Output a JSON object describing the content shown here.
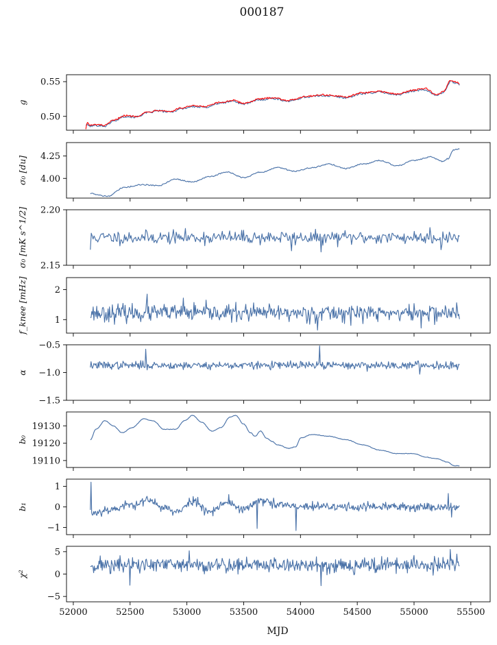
{
  "figure": {
    "title": "000187",
    "xlabel": "MJD"
  },
  "colors": {
    "series": "#4a72a8",
    "fit": "#ff0000",
    "axis": "#000000"
  },
  "chart_data": [
    {
      "type": "line",
      "ylabel": "g",
      "xlim": [
        51940,
        55670
      ],
      "ylim": [
        0.48,
        0.56
      ],
      "yticks": [
        0.5,
        0.55
      ],
      "ytick_labels": [
        "0.50",
        "0.55"
      ],
      "series": [
        {
          "kind": "walk",
          "color": "#4a72a8",
          "x_range": [
            52110,
            55400
          ],
          "wobble": 0.0015,
          "anchors": [
            [
              52110,
              0.488
            ],
            [
              52150,
              0.486
            ],
            [
              52200,
              0.487
            ],
            [
              52280,
              0.486
            ],
            [
              52350,
              0.493
            ],
            [
              52450,
              0.5
            ],
            [
              52550,
              0.499
            ],
            [
              52650,
              0.505
            ],
            [
              52750,
              0.508
            ],
            [
              52850,
              0.506
            ],
            [
              52950,
              0.511
            ],
            [
              53050,
              0.514
            ],
            [
              53150,
              0.513
            ],
            [
              53300,
              0.519
            ],
            [
              53400,
              0.522
            ],
            [
              53500,
              0.518
            ],
            [
              53650,
              0.524
            ],
            [
              53750,
              0.526
            ],
            [
              53900,
              0.522
            ],
            [
              54050,
              0.528
            ],
            [
              54200,
              0.53
            ],
            [
              54400,
              0.527
            ],
            [
              54550,
              0.533
            ],
            [
              54700,
              0.535
            ],
            [
              54850,
              0.531
            ],
            [
              55000,
              0.537
            ],
            [
              55100,
              0.538
            ],
            [
              55200,
              0.53
            ],
            [
              55260,
              0.535
            ],
            [
              55320,
              0.55
            ],
            [
              55380,
              0.548
            ],
            [
              55400,
              0.546
            ]
          ]
        },
        {
          "kind": "walk",
          "color": "#ff0000",
          "x_range": [
            52110,
            55400
          ],
          "wobble": 0.0012,
          "anchors": [
            [
              52110,
              0.482
            ],
            [
              52120,
              0.491
            ],
            [
              52150,
              0.487
            ],
            [
              52200,
              0.488
            ],
            [
              52280,
              0.487
            ],
            [
              52350,
              0.494
            ],
            [
              52450,
              0.501
            ],
            [
              52550,
              0.5
            ],
            [
              52650,
              0.506
            ],
            [
              52750,
              0.509
            ],
            [
              52850,
              0.507
            ],
            [
              52950,
              0.512
            ],
            [
              53050,
              0.515
            ],
            [
              53150,
              0.514
            ],
            [
              53300,
              0.52
            ],
            [
              53400,
              0.523
            ],
            [
              53500,
              0.519
            ],
            [
              53650,
              0.525
            ],
            [
              53750,
              0.527
            ],
            [
              53900,
              0.523
            ],
            [
              54050,
              0.529
            ],
            [
              54200,
              0.531
            ],
            [
              54400,
              0.528
            ],
            [
              54550,
              0.534
            ],
            [
              54700,
              0.536
            ],
            [
              54850,
              0.532
            ],
            [
              55000,
              0.538
            ],
            [
              55100,
              0.54
            ],
            [
              55200,
              0.531
            ],
            [
              55260,
              0.536
            ],
            [
              55320,
              0.552
            ],
            [
              55380,
              0.549
            ],
            [
              55400,
              0.547
            ]
          ]
        }
      ]
    },
    {
      "type": "line",
      "ylabel": "σ₀ [du]",
      "xlim": [
        51940,
        55670
      ],
      "ylim": [
        3.78,
        4.4
      ],
      "yticks": [
        4.0,
        4.25
      ],
      "ytick_labels": [
        "4.00",
        "4.25"
      ],
      "series": [
        {
          "kind": "walk",
          "color": "#4a72a8",
          "x_range": [
            52150,
            55400
          ],
          "wobble": 0.006,
          "anchors": [
            [
              52150,
              3.83
            ],
            [
              52300,
              3.8
            ],
            [
              52450,
              3.9
            ],
            [
              52600,
              3.93
            ],
            [
              52750,
              3.92
            ],
            [
              52900,
              3.99
            ],
            [
              53050,
              3.96
            ],
            [
              53200,
              4.02
            ],
            [
              53350,
              4.07
            ],
            [
              53500,
              4.01
            ],
            [
              53650,
              4.07
            ],
            [
              53800,
              4.12
            ],
            [
              53950,
              4.08
            ],
            [
              54100,
              4.12
            ],
            [
              54250,
              4.16
            ],
            [
              54400,
              4.11
            ],
            [
              54550,
              4.16
            ],
            [
              54700,
              4.2
            ],
            [
              54850,
              4.14
            ],
            [
              55000,
              4.2
            ],
            [
              55150,
              4.24
            ],
            [
              55250,
              4.19
            ],
            [
              55300,
              4.22
            ],
            [
              55350,
              4.32
            ],
            [
              55400,
              4.33
            ]
          ]
        }
      ]
    },
    {
      "type": "line",
      "ylabel": "σ₀ [mK s^1/2]",
      "xlim": [
        51940,
        55670
      ],
      "ylim": [
        2.15,
        2.2
      ],
      "yticks": [
        2.15,
        2.2
      ],
      "ytick_labels": [
        "2.15",
        "2.20"
      ],
      "series": [
        {
          "kind": "noise",
          "color": "#4a72a8",
          "x_range": [
            52150,
            55400
          ],
          "n": 400,
          "mean": 2.175,
          "sd": 0.003,
          "seed": 11,
          "spikes": [
            [
              52150,
              2.164
            ],
            [
              53920,
              2.163
            ],
            [
              54180,
              2.162
            ],
            [
              55240,
              2.164
            ],
            [
              55140,
              2.184
            ]
          ]
        }
      ]
    },
    {
      "type": "line",
      "ylabel": "f_knee [mHz]",
      "xlim": [
        51940,
        55670
      ],
      "ylim": [
        0.55,
        2.4
      ],
      "yticks": [
        1,
        2
      ],
      "ytick_labels": [
        "1",
        "2"
      ],
      "series": [
        {
          "kind": "noise",
          "color": "#4a72a8",
          "x_range": [
            52150,
            55400
          ],
          "n": 520,
          "mean": 1.22,
          "sd": 0.14,
          "seed": 23,
          "spikes": [
            [
              52650,
              1.85
            ],
            [
              54150,
              0.65
            ],
            [
              55060,
              0.72
            ],
            [
              52970,
              1.72
            ]
          ]
        }
      ]
    },
    {
      "type": "line",
      "ylabel": "α",
      "xlim": [
        51940,
        55670
      ],
      "ylim": [
        -1.5,
        -0.5
      ],
      "yticks": [
        -1.5,
        -1.0,
        -0.5
      ],
      "ytick_labels": [
        "−1.5",
        "−1.0",
        "−0.5"
      ],
      "series": [
        {
          "kind": "noise",
          "color": "#4a72a8",
          "x_range": [
            52150,
            55400
          ],
          "n": 520,
          "mean": -0.87,
          "sd": 0.035,
          "seed": 37,
          "spikes": [
            [
              52640,
              -0.58
            ],
            [
              54170,
              -0.52
            ],
            [
              55050,
              -1.03
            ]
          ]
        }
      ]
    },
    {
      "type": "line",
      "ylabel": "b₀",
      "xlim": [
        51940,
        55670
      ],
      "ylim": [
        19106,
        19138
      ],
      "yticks": [
        19110,
        19120,
        19130
      ],
      "ytick_labels": [
        "19110",
        "19120",
        "19130"
      ],
      "series": [
        {
          "kind": "walk",
          "color": "#4a72a8",
          "x_range": [
            52150,
            55400
          ],
          "wobble": 0.15,
          "anchors": [
            [
              52150,
              19122
            ],
            [
              52200,
              19128
            ],
            [
              52280,
              19133
            ],
            [
              52350,
              19130
            ],
            [
              52430,
              19126
            ],
            [
              52520,
              19129
            ],
            [
              52620,
              19134
            ],
            [
              52700,
              19133
            ],
            [
              52800,
              19128
            ],
            [
              52900,
              19128
            ],
            [
              52980,
              19133
            ],
            [
              53050,
              19136
            ],
            [
              53130,
              19132
            ],
            [
              53220,
              19127
            ],
            [
              53300,
              19129
            ],
            [
              53380,
              19135
            ],
            [
              53430,
              19136
            ],
            [
              53500,
              19131
            ],
            [
              53560,
              19126
            ],
            [
              53600,
              19124
            ],
            [
              53650,
              19127
            ],
            [
              53700,
              19123
            ],
            [
              53750,
              19121
            ],
            [
              53800,
              19119
            ],
            [
              53900,
              19117
            ],
            [
              53960,
              19118
            ],
            [
              54000,
              19123
            ],
            [
              54100,
              19125
            ],
            [
              54250,
              19124
            ],
            [
              54400,
              19122
            ],
            [
              54550,
              19119
            ],
            [
              54700,
              19116
            ],
            [
              54850,
              19114
            ],
            [
              55000,
              19114
            ],
            [
              55100,
              19112
            ],
            [
              55200,
              19111
            ],
            [
              55300,
              19109
            ],
            [
              55350,
              19107
            ],
            [
              55400,
              19107
            ]
          ]
        }
      ]
    },
    {
      "type": "line",
      "ylabel": "b₁",
      "xlim": [
        51940,
        55670
      ],
      "ylim": [
        -1.35,
        1.35
      ],
      "yticks": [
        -1,
        0,
        1
      ],
      "ytick_labels": [
        "−1",
        "0",
        "1"
      ],
      "series": [
        {
          "kind": "noise",
          "color": "#4a72a8",
          "x_range": [
            52150,
            55400
          ],
          "n": 560,
          "mean": 0.0,
          "sd": 0.11,
          "seed": 53,
          "wave": [
            [
              52150,
              -0.3
            ],
            [
              52350,
              -0.1
            ],
            [
              52500,
              0.1
            ],
            [
              52650,
              0.3
            ],
            [
              52800,
              0.0
            ],
            [
              52900,
              -0.3
            ],
            [
              53050,
              0.3
            ],
            [
              53200,
              -0.2
            ],
            [
              53350,
              0.2
            ],
            [
              53500,
              -0.1
            ],
            [
              53650,
              0.3
            ],
            [
              53800,
              0.1
            ],
            [
              54000,
              0.0
            ],
            [
              55400,
              0.0
            ]
          ],
          "spikes": [
            [
              52155,
              1.2
            ],
            [
              52165,
              -0.4
            ],
            [
              53960,
              -1.15
            ],
            [
              53620,
              -1.05
            ],
            [
              53370,
              0.6
            ],
            [
              55300,
              0.65
            ],
            [
              55330,
              -0.5
            ]
          ]
        }
      ]
    },
    {
      "type": "line",
      "ylabel": "χ²",
      "xlim": [
        51940,
        55670
      ],
      "ylim": [
        -6.2,
        6.2
      ],
      "yticks": [
        -5,
        0,
        5
      ],
      "ytick_labels": [
        "−5",
        "0",
        "5"
      ],
      "series": [
        {
          "kind": "noise",
          "color": "#4a72a8",
          "x_range": [
            52150,
            55400
          ],
          "n": 560,
          "mean": 2.0,
          "sd": 0.9,
          "seed": 71,
          "spikes": [
            [
              52500,
              -2.5
            ],
            [
              54180,
              -2.6
            ],
            [
              53020,
              5.2
            ],
            [
              55320,
              5.5
            ]
          ]
        }
      ]
    }
  ],
  "shared_x": {
    "xticks": [
      52000,
      52500,
      53000,
      53500,
      54000,
      54500,
      55000,
      55500
    ],
    "xtick_labels": [
      "52000",
      "52500",
      "53000",
      "53500",
      "54000",
      "54500",
      "55000",
      "55500"
    ]
  }
}
